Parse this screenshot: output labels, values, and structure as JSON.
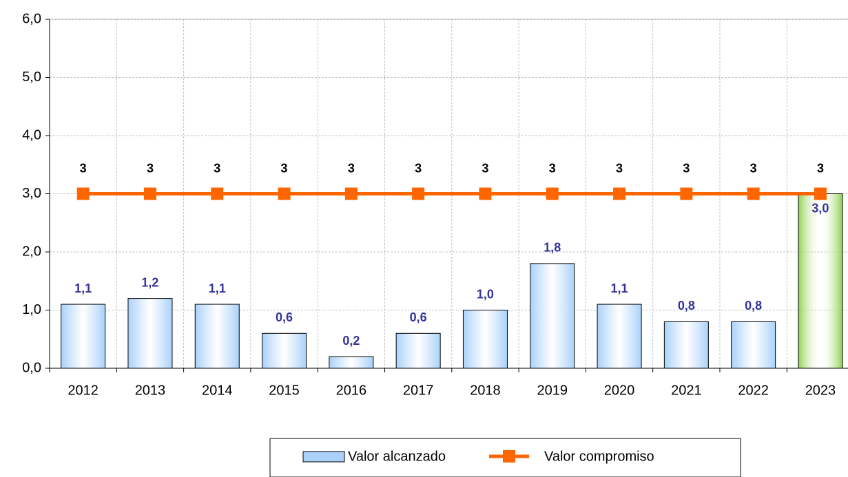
{
  "chart_data": {
    "type": "bar_line",
    "categories": [
      "2012",
      "2013",
      "2014",
      "2015",
      "2016",
      "2017",
      "2018",
      "2019",
      "2020",
      "2021",
      "2022",
      "2023"
    ],
    "series": [
      {
        "name": "Valor alcanzado",
        "type": "bar",
        "color": "#a9d1fa",
        "colors": [
          "#a9d1fa",
          "#a9d1fa",
          "#a9d1fa",
          "#a9d1fa",
          "#a9d1fa",
          "#a9d1fa",
          "#a9d1fa",
          "#a9d1fa",
          "#a9d1fa",
          "#a9d1fa",
          "#a9d1fa",
          "#92d050"
        ],
        "values": [
          1.1,
          1.2,
          1.1,
          0.6,
          0.2,
          0.6,
          1.0,
          1.8,
          1.1,
          0.8,
          0.8,
          3.0
        ],
        "value_labels": [
          "1,1",
          "1,2",
          "1,1",
          "0,6",
          "0,2",
          "0,6",
          "1,0",
          "1,8",
          "1,1",
          "0,8",
          "0,8",
          "3,0"
        ]
      },
      {
        "name": "Valor compromiso",
        "type": "line",
        "color": "#ff6600",
        "values": [
          3,
          3,
          3,
          3,
          3,
          3,
          3,
          3,
          3,
          3,
          3,
          3
        ]
      }
    ],
    "ylim": [
      0,
      6
    ],
    "yticks": [
      {
        "value": 0,
        "label": "0,0"
      },
      {
        "value": 1,
        "label": "1,0"
      },
      {
        "value": 2,
        "label": "2,0"
      },
      {
        "value": 3,
        "label": "3,0"
      },
      {
        "value": 4,
        "label": "4,0"
      },
      {
        "value": 5,
        "label": "5,0"
      },
      {
        "value": 6,
        "label": "6,0"
      }
    ],
    "grid": true,
    "legend": "bottom"
  }
}
